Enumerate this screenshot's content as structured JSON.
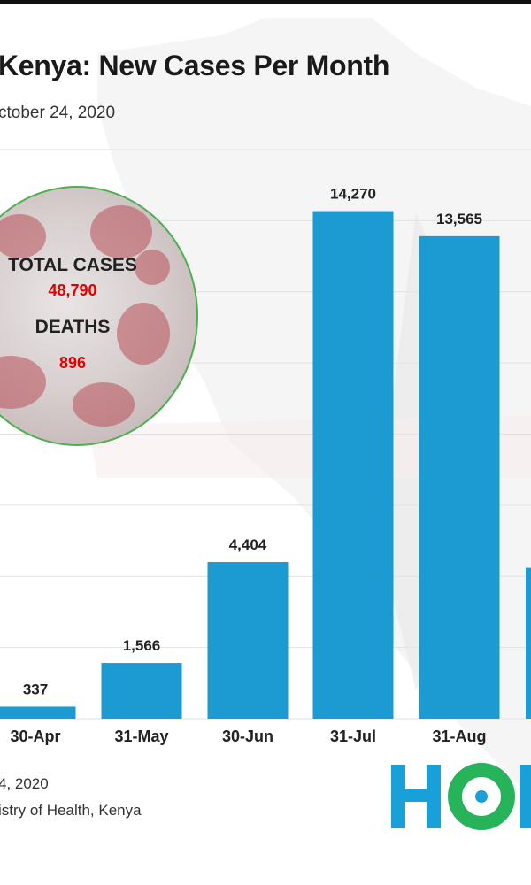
{
  "title": "Kenya: New Cases Per Month",
  "subtitle": "ctober 24, 2020",
  "badge": {
    "total_cases_label": "TOTAL CASES",
    "total_cases_value": "48,790",
    "deaths_label": "DEATHS",
    "deaths_value": "896"
  },
  "footer": {
    "date": "4, 2020",
    "source": "istry of Health, Kenya"
  },
  "logo": {
    "text": "HOP",
    "color": "#1aa0d8",
    "accent": "#27b35a"
  },
  "colors": {
    "bar": "#1b9bd1",
    "grid": "#e2e2e2",
    "title": "#1a1a1a",
    "value_red": "#e00000"
  },
  "chart_data": {
    "type": "bar",
    "categories": [
      "30-Apr",
      "31-May",
      "30-Jun",
      "31-Jul",
      "31-Aug"
    ],
    "values": [
      337,
      1566,
      4404,
      14270,
      13565
    ],
    "value_labels": [
      "337",
      "1,566",
      "4,404",
      "14,270",
      "13,565"
    ],
    "partial_next_bar_value": 4240,
    "ylim": [
      0,
      16000
    ],
    "grid": true,
    "xlabel": "",
    "ylabel": ""
  }
}
